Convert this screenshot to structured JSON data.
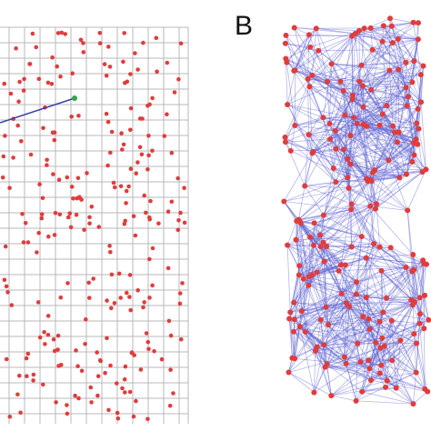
{
  "panel_label": "B"
}
